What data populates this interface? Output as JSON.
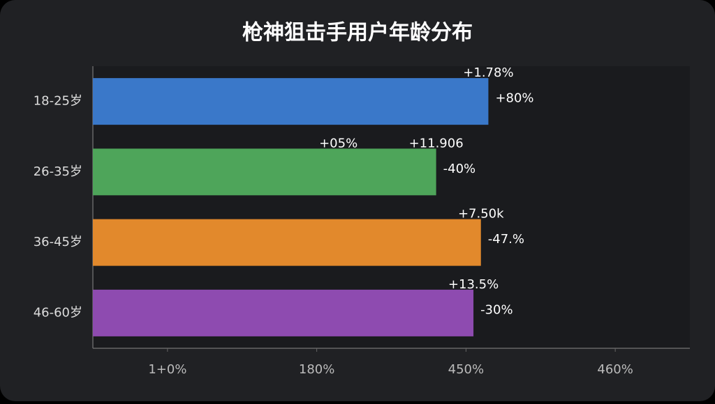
{
  "chart_data": {
    "type": "barh",
    "title": "枪神狙击手用户年龄分布",
    "categories": [
      "18-25岁",
      "26-35岁",
      "36-45岁",
      "46-60岁"
    ],
    "series": [
      {
        "colors": [
          "#3a78c9",
          "#4ea55a",
          "#e2892c",
          "#8e4bb0"
        ],
        "values": [
          3.15,
          2.8,
          3.1,
          3.05
        ],
        "value_labels": [
          "+80%",
          "-40%",
          "-47.%",
          "-30%"
        ],
        "annotations": [
          [
            "+1.78%"
          ],
          [
            "+05%",
            "+11.906"
          ],
          [
            "+7.50k"
          ],
          [
            "+13.5%"
          ]
        ]
      }
    ],
    "xlim": [
      0.5,
      4.5
    ],
    "xticks": [
      {
        "value": 1,
        "label": "1+0%"
      },
      {
        "value": 2,
        "label": "180%"
      },
      {
        "value": 3,
        "label": "450%"
      },
      {
        "value": 4,
        "label": "460%"
      }
    ]
  }
}
